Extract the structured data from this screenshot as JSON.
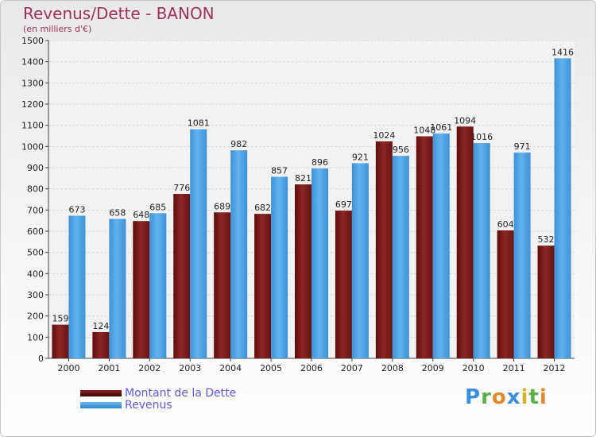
{
  "header": {
    "title": "Revenus/Dette - BANON",
    "subtitle": "(en milliers d'€)"
  },
  "chart_data": {
    "type": "bar",
    "title": "Revenus/Dette - BANON",
    "ylabel": "(en milliers d'€)",
    "xlabel": "",
    "ylim": [
      0,
      1500
    ],
    "yticks": [
      0,
      100,
      200,
      300,
      400,
      500,
      600,
      700,
      800,
      900,
      1000,
      1100,
      1200,
      1300,
      1400,
      1500
    ],
    "grid": true,
    "categories": [
      "2000",
      "2001",
      "2002",
      "2003",
      "2004",
      "2005",
      "2006",
      "2007",
      "2008",
      "2009",
      "2010",
      "2011",
      "2012"
    ],
    "series": [
      {
        "name": "Montant de la Dette",
        "color": "#7a1a1a",
        "values": [
          159,
          124,
          648,
          776,
          689,
          682,
          821,
          697,
          1024,
          1048,
          1094,
          604,
          532
        ]
      },
      {
        "name": "Revenus",
        "color": "#4a9fe0",
        "values": [
          673,
          658,
          685,
          1081,
          982,
          857,
          896,
          921,
          956,
          1061,
          1016,
          971,
          1416
        ]
      }
    ]
  },
  "legend": {
    "items": [
      {
        "label": "Montant de la Dette",
        "color": "#6a0f0f"
      },
      {
        "label": "Revenus",
        "color": "#4a9fe0"
      }
    ]
  },
  "brand": {
    "letters": [
      {
        "char": "P",
        "color": "#3a8fd8"
      },
      {
        "char": "r",
        "color": "#5bb04a"
      },
      {
        "char": "o",
        "color": "#e08a2a"
      },
      {
        "char": "x",
        "color": "#3a8fd8"
      },
      {
        "char": "i",
        "color": "#d6b21f"
      },
      {
        "char": "t",
        "color": "#5bb04a"
      },
      {
        "char": "i",
        "color": "#e08a2a"
      }
    ]
  }
}
